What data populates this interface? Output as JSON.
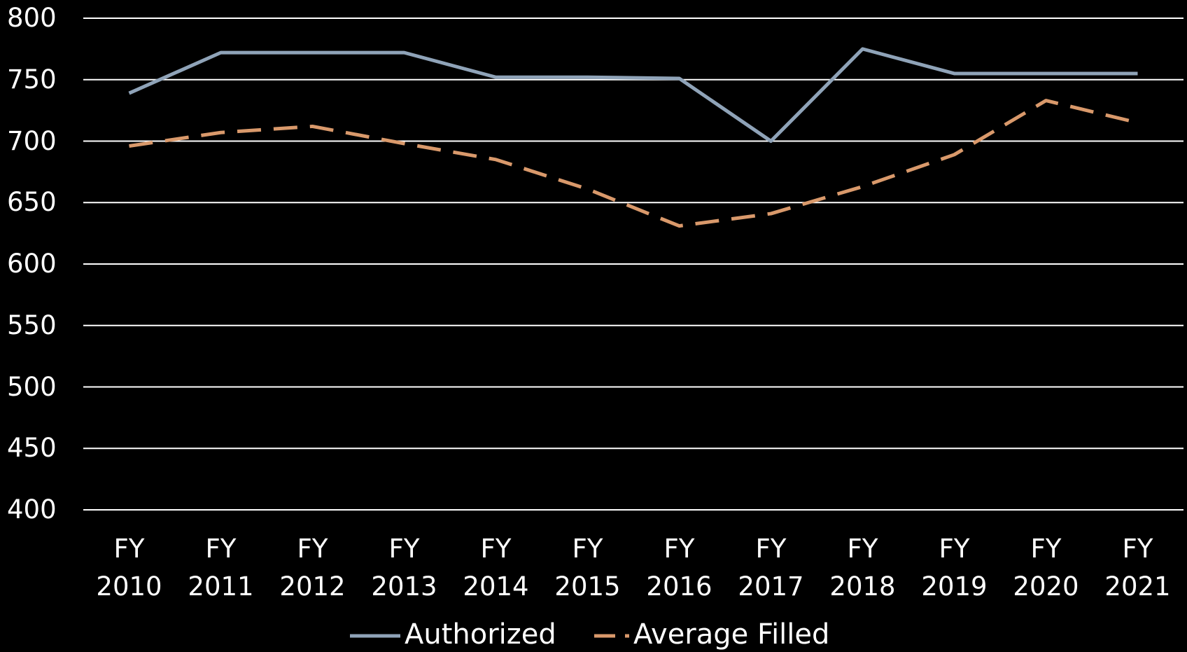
{
  "chart_data": {
    "type": "line",
    "categories": [
      "FY 2010",
      "FY 2011",
      "FY 2012",
      "FY 2013",
      "FY 2014",
      "FY 2015",
      "FY 2016",
      "FY 2017",
      "FY 2018",
      "FY 2019",
      "FY 2020",
      "FY 2021"
    ],
    "series": [
      {
        "name": "Authorized",
        "color": "#8fa3b8",
        "dash": false,
        "values": [
          739,
          772,
          772,
          772,
          752,
          752,
          751,
          700,
          775,
          755,
          755,
          755
        ]
      },
      {
        "name": "Average Filled",
        "color": "#d9996b",
        "dash": true,
        "values": [
          696,
          707,
          712,
          698,
          685,
          661,
          631,
          641,
          663,
          689,
          733,
          715
        ]
      }
    ],
    "ylim": [
      400,
      800
    ],
    "yticks": [
      400,
      450,
      500,
      550,
      600,
      650,
      700,
      750,
      800
    ],
    "grid": true,
    "legend": "bottom"
  }
}
